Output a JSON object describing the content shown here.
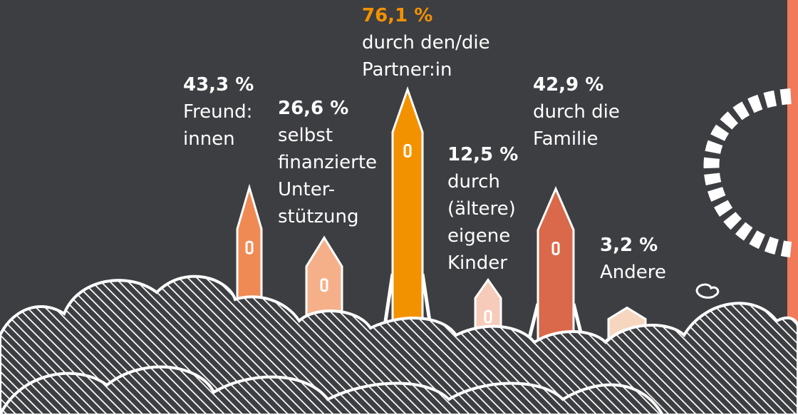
{
  "chart_data": {
    "type": "rocket",
    "categories": [
      "Freund:\ninnen",
      "selbst\nfinanzierte\nUnter-\nstützung",
      "durch den/die\nPartner:in",
      "durch\n(ältere)\neigene\nKinder",
      "durch die\nFamilie",
      "Andere"
    ],
    "values": [
      43.3,
      26.6,
      76.1,
      12.5,
      42.9,
      3.2
    ],
    "value_labels": [
      "43,3 %",
      "26,6 %",
      "76,1 %",
      "12,5 %",
      "42,9 %",
      "3,2 %"
    ],
    "colors": [
      "#f08a55",
      "#f5b08a",
      "#f39200",
      "#f6cbb9",
      "#d9694a",
      "#f7d6bf"
    ],
    "highlight": 2
  }
}
